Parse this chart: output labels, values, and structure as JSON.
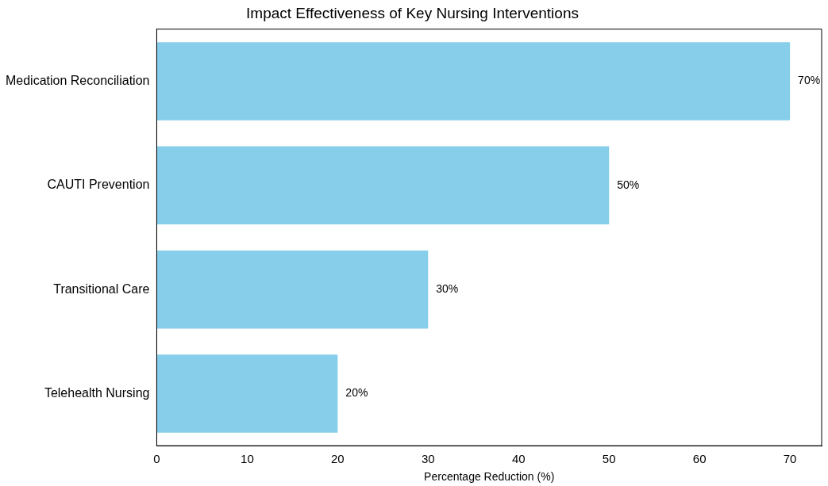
{
  "chart_data": {
    "type": "bar",
    "orientation": "horizontal",
    "title": "Impact Effectiveness of Key Nursing Interventions",
    "xlabel": "Percentage Reduction (%)",
    "categories": [
      "Medication Reconciliation",
      "CAUTI Prevention",
      "Transitional Care",
      "Telehealth Nursing"
    ],
    "values": [
      70,
      50,
      30,
      20
    ],
    "color": "#87ceeb",
    "value_labels": [
      "70%",
      "50%",
      "30%",
      "20%"
    ],
    "xlim": [
      0,
      73.5
    ],
    "xticks": [
      0,
      10,
      20,
      30,
      40,
      50,
      60,
      70
    ],
    "grid": false,
    "legend": false
  }
}
